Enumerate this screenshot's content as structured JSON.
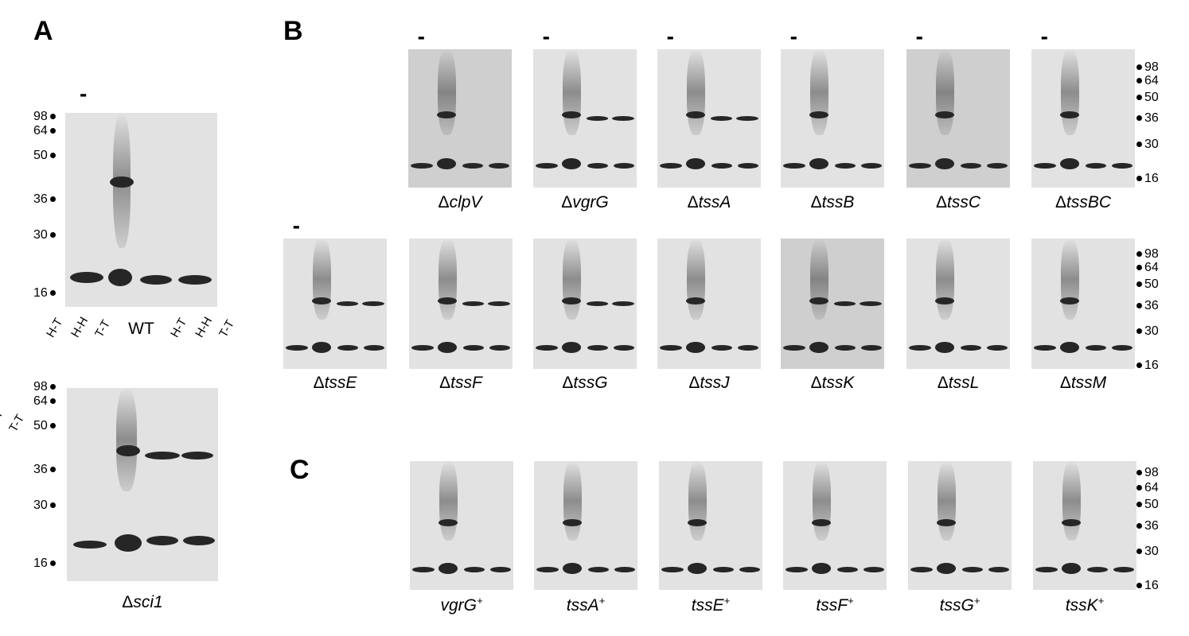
{
  "panel_letters": {
    "a": "A",
    "b": "B",
    "c": "C"
  },
  "lanes": {
    "minus": "-",
    "ht": "H-T",
    "hh": "H-H",
    "tt": "T-T"
  },
  "markers": [
    "98",
    "64",
    "50",
    "36",
    "30",
    "16"
  ],
  "panel_a": {
    "wt_label": "WT",
    "sci1_prefix": "Δ",
    "sci1_name": "sci1"
  },
  "panel_b_row1": [
    {
      "prefix": "Δ",
      "name": "clpV"
    },
    {
      "prefix": "Δ",
      "name": "vgrG"
    },
    {
      "prefix": "Δ",
      "name": "tssA"
    },
    {
      "prefix": "Δ",
      "name": "tssB"
    },
    {
      "prefix": "Δ",
      "name": "tssC"
    },
    {
      "prefix": "Δ",
      "name": "tssBC"
    }
  ],
  "panel_b_row2": [
    {
      "prefix": "Δ",
      "name": "tssE"
    },
    {
      "prefix": "Δ",
      "name": "tssF"
    },
    {
      "prefix": "Δ",
      "name": "tssG"
    },
    {
      "prefix": "Δ",
      "name": "tssJ"
    },
    {
      "prefix": "Δ",
      "name": "tssK"
    },
    {
      "prefix": "Δ",
      "name": "tssL"
    },
    {
      "prefix": "Δ",
      "name": "tssM"
    }
  ],
  "panel_c": [
    {
      "name": "vgrG",
      "sup": "+"
    },
    {
      "name": "tssA",
      "sup": "+"
    },
    {
      "name": "tssE",
      "sup": "+"
    },
    {
      "name": "tssF",
      "sup": "+"
    },
    {
      "name": "tssG",
      "sup": "+"
    },
    {
      "name": "tssK",
      "sup": "+"
    }
  ]
}
